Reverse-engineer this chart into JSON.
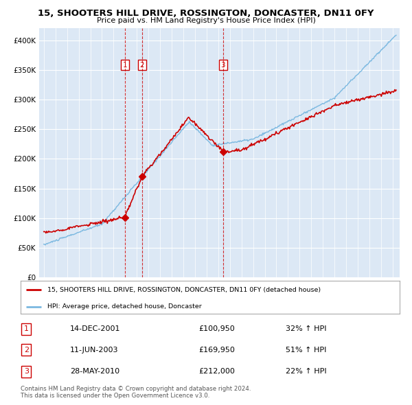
{
  "title": "15, SHOOTERS HILL DRIVE, ROSSINGTON, DONCASTER, DN11 0FY",
  "subtitle": "Price paid vs. HM Land Registry's House Price Index (HPI)",
  "bg_color": "#dce8f5",
  "red_line_label": "15, SHOOTERS HILL DRIVE, ROSSINGTON, DONCASTER, DN11 0FY (detached house)",
  "blue_line_label": "HPI: Average price, detached house, Doncaster",
  "transactions": [
    {
      "num": 1,
      "date": "14-DEC-2001",
      "price": 100950,
      "year": 2001.96,
      "hpi_pct": "32% ↑ HPI"
    },
    {
      "num": 2,
      "date": "11-JUN-2003",
      "price": 169950,
      "year": 2003.44,
      "hpi_pct": "51% ↑ HPI"
    },
    {
      "num": 3,
      "date": "28-MAY-2010",
      "price": 212000,
      "year": 2010.41,
      "hpi_pct": "22% ↑ HPI"
    }
  ],
  "footer": "Contains HM Land Registry data © Crown copyright and database right 2024.\nThis data is licensed under the Open Government Licence v3.0.",
  "ylim": [
    0,
    420000
  ],
  "yticks": [
    0,
    50000,
    100000,
    150000,
    200000,
    250000,
    300000,
    350000,
    400000
  ],
  "ytick_labels": [
    "£0",
    "£50K",
    "£100K",
    "£150K",
    "£200K",
    "£250K",
    "£300K",
    "£350K",
    "£400K"
  ]
}
